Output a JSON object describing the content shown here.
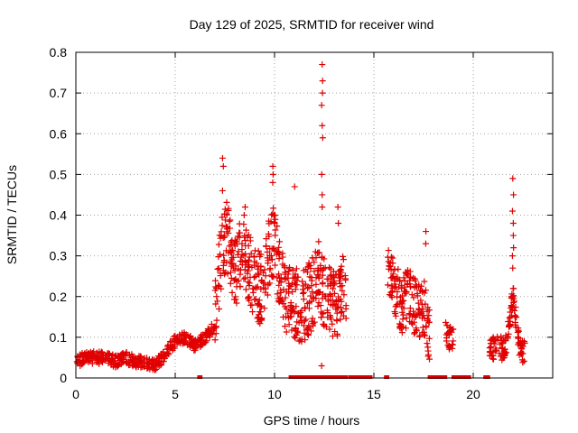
{
  "chart_data": {
    "type": "scatter",
    "title": "Day 129 of 2025, SRMTID for receiver wind",
    "xlabel": "GPS time / hours",
    "ylabel": "SRMTID / TECUs",
    "xlim": [
      0,
      24
    ],
    "ylim": [
      0,
      0.8
    ],
    "xticks": [
      0,
      5,
      10,
      15,
      20
    ],
    "yticks": [
      0,
      0.1,
      0.2,
      0.3,
      0.4,
      0.5,
      0.6,
      0.7,
      0.8
    ],
    "grid": true,
    "marker": "+",
    "color": "#e00000",
    "series": [
      {
        "name": "SRMTID",
        "segments": [
          {
            "x": [
              0,
              0.5,
              1,
              1.5,
              2,
              2.5,
              3,
              3.5,
              4,
              4.5,
              5,
              5.5,
              6,
              6.5,
              7
            ],
            "y": [
              0.04,
              0.05,
              0.05,
              0.05,
              0.04,
              0.05,
              0.04,
              0.04,
              0.03,
              0.06,
              0.09,
              0.1,
              0.08,
              0.1,
              0.13
            ],
            "spread": 0.015,
            "density": 10
          },
          {
            "x": [
              7.0,
              7.3,
              7.6,
              8.0,
              8.4,
              8.7,
              9.0,
              9.3,
              9.6,
              10.0,
              10.3,
              10.6,
              11.0,
              11.4,
              11.8,
              12.2,
              12.6,
              13.0,
              13.3,
              13.6
            ],
            "y": [
              0.16,
              0.3,
              0.35,
              0.26,
              0.32,
              0.27,
              0.24,
              0.22,
              0.28,
              0.34,
              0.25,
              0.2,
              0.19,
              0.17,
              0.2,
              0.25,
              0.2,
              0.18,
              0.2,
              0.22
            ],
            "spread": 0.09,
            "density": 14
          },
          {
            "x": [
              15.7,
              16.0,
              16.4,
              16.8,
              17.2,
              17.5,
              17.8
            ],
            "y": [
              0.28,
              0.22,
              0.18,
              0.2,
              0.16,
              0.18,
              0.1
            ],
            "spread": 0.07,
            "density": 14
          },
          {
            "x": [
              18.6,
              18.8,
              19.0
            ],
            "y": [
              0.12,
              0.1,
              0.09
            ],
            "spread": 0.03,
            "density": 12
          },
          {
            "x": [
              20.8,
              21.2,
              21.6,
              22.0,
              22.3,
              22.6
            ],
            "y": [
              0.06,
              0.08,
              0.07,
              0.2,
              0.08,
              0.06
            ],
            "spread": 0.03,
            "density": 12
          }
        ],
        "spikes": [
          {
            "x": 7.4,
            "y": [
              0.54,
              0.52,
              0.46
            ]
          },
          {
            "x": 8.5,
            "y": [
              0.42,
              0.4
            ]
          },
          {
            "x": 9.9,
            "y": [
              0.52,
              0.5,
              0.48
            ]
          },
          {
            "x": 10.0,
            "y": [
              0.4,
              0.38
            ]
          },
          {
            "x": 11.0,
            "y": [
              0.47
            ]
          },
          {
            "x": 12.4,
            "y": [
              0.77,
              0.73,
              0.7,
              0.67,
              0.62,
              0.59,
              0.5,
              0.45,
              0.42
            ]
          },
          {
            "x": 12.35,
            "y": [
              0.03
            ]
          },
          {
            "x": 13.2,
            "y": [
              0.42,
              0.38
            ]
          },
          {
            "x": 17.6,
            "y": [
              0.36,
              0.33
            ]
          },
          {
            "x": 22.0,
            "y": [
              0.49,
              0.45,
              0.41,
              0.38,
              0.35,
              0.32,
              0.3,
              0.27,
              0.22
            ]
          }
        ],
        "zero_ranges": [
          [
            6.2,
            6.3
          ],
          [
            10.8,
            13.6
          ],
          [
            13.8,
            14.9
          ],
          [
            15.6,
            15.7
          ],
          [
            17.8,
            18.6
          ],
          [
            19.0,
            19.8
          ],
          [
            20.6,
            20.8
          ]
        ]
      }
    ]
  }
}
